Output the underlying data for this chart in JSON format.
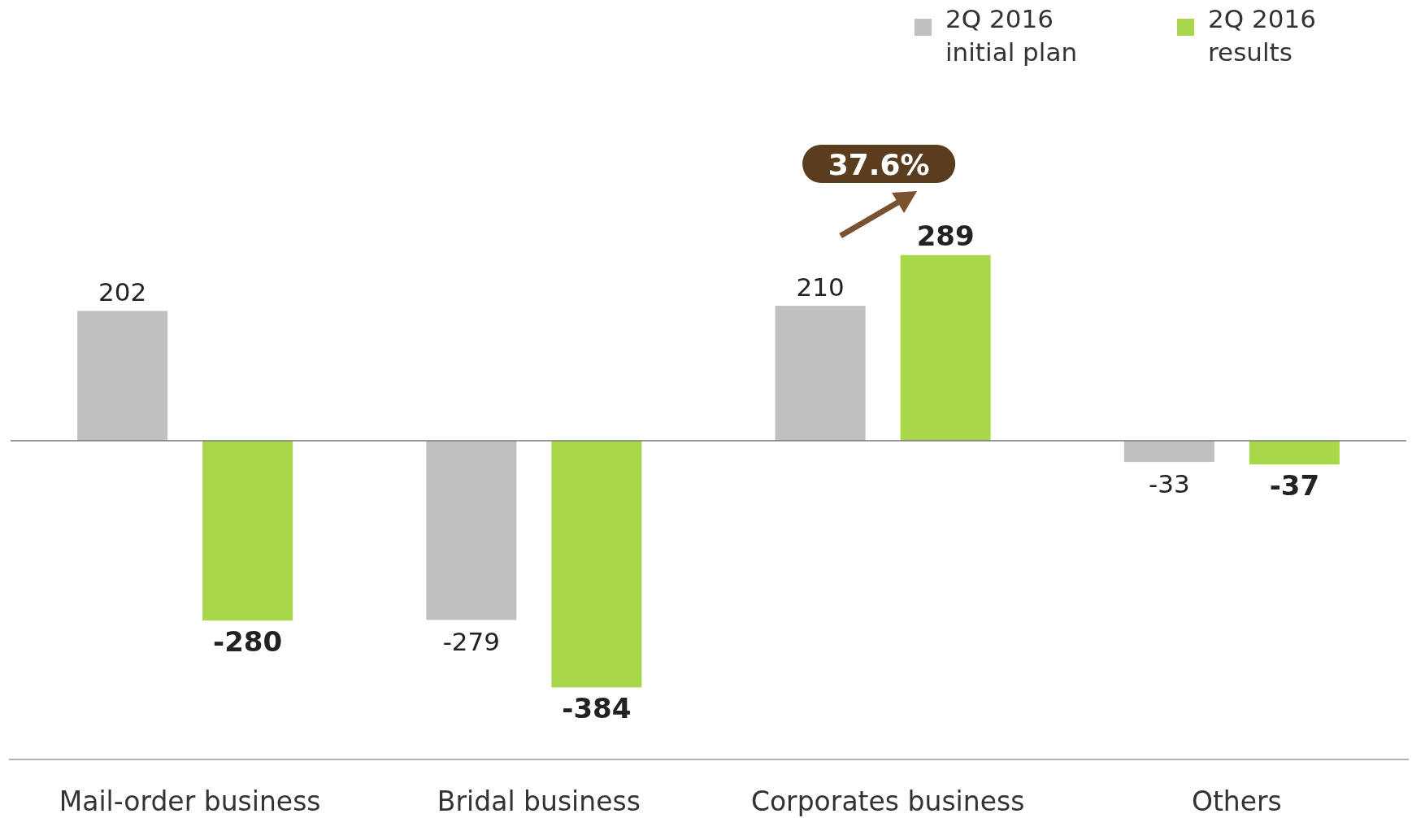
{
  "chart_data": {
    "type": "bar",
    "categories": [
      "Mail-order business",
      "Bridal business",
      "Corporates business",
      "Others"
    ],
    "series": [
      {
        "name": "2Q 2016 initial plan",
        "color": "#c0c0c0",
        "values": [
          202,
          -279,
          210,
          -33
        ]
      },
      {
        "name": "2Q 2016 results",
        "color": "#a8d84a",
        "values": [
          -280,
          -384,
          289,
          -37
        ]
      }
    ],
    "data_labels": true,
    "legend": "top right",
    "annotations": [
      "37.6%"
    ]
  }
}
